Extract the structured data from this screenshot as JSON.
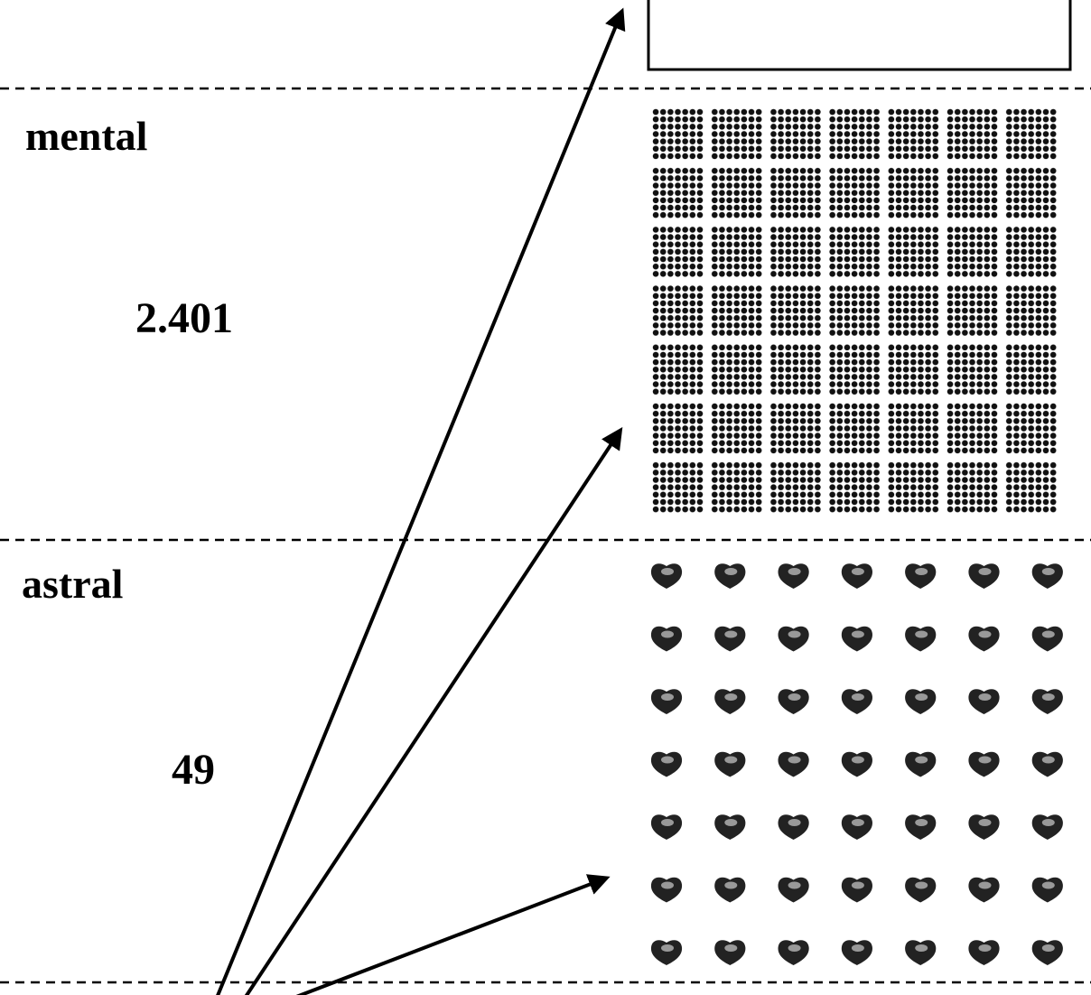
{
  "sections": [
    {
      "label": "mental",
      "count": "2.401"
    },
    {
      "label": "astral",
      "count": "49"
    }
  ]
}
